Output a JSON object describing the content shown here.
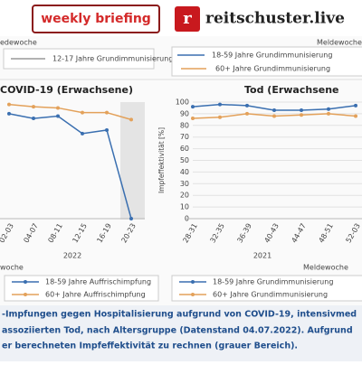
{
  "header": {
    "badge": "weekly briefing",
    "brand": "reitschuster.live"
  },
  "upper": {
    "left_axis_label": "edewoche",
    "right_axis_label": "Meldewoche",
    "left_legend": "12-17 Jahre Grundimmunisierung",
    "right_legend": [
      "18-59 Jahre Grundimmunisierung",
      "60+ Jahre Grundimmunisierung"
    ]
  },
  "chart_data": [
    {
      "type": "line",
      "title": "COVID-19 (Erwachsene)",
      "x_label": "woche",
      "x_group_label": "2022",
      "categories": [
        "02-03",
        "04-07",
        "08-11",
        "12-15",
        "16-19",
        "20-23"
      ],
      "ylim": [
        0,
        100
      ],
      "series": [
        {
          "name": "18-59 Jahre Auffrischimpfung",
          "color": "#3a6fb0",
          "values": [
            90,
            86,
            88,
            73,
            76,
            0
          ]
        },
        {
          "name": "60+ Jahre Auffrischimpfung",
          "color": "#e3a15a",
          "values": [
            98,
            96,
            95,
            91,
            91,
            85
          ]
        }
      ]
    },
    {
      "type": "line",
      "title": "Tod (Erwachsene",
      "x_label": "Meldewoche",
      "x_group_label": "2021",
      "y_label": "Impfeffektivität [%]",
      "categories": [
        "28-31",
        "32-35",
        "36-39",
        "40-43",
        "44-47",
        "48-51",
        "52-03"
      ],
      "ylim": [
        0,
        100
      ],
      "yticks": [
        0,
        10,
        20,
        30,
        40,
        50,
        60,
        70,
        80,
        90,
        100
      ],
      "grid": true,
      "series": [
        {
          "name": "18-59 Jahre Grundimmunisierung",
          "color": "#3a6fb0",
          "values": [
            96,
            98,
            97,
            93,
            93,
            94,
            97
          ]
        },
        {
          "name": "60+ Jahre Grundimmunisierung",
          "color": "#e3a15a",
          "values": [
            86,
            87,
            90,
            88,
            89,
            90,
            88
          ]
        }
      ]
    }
  ],
  "caption": [
    "-Impfungen gegen Hospitalisierung aufgrund von COVID-19, intensivmed",
    "assoziierten Tod, nach Altersgruppe (Datenstand 04.07.2022). Aufgrund",
    "er berechneten Impfeffektivität zu rechnen (grauer Bereich)."
  ]
}
